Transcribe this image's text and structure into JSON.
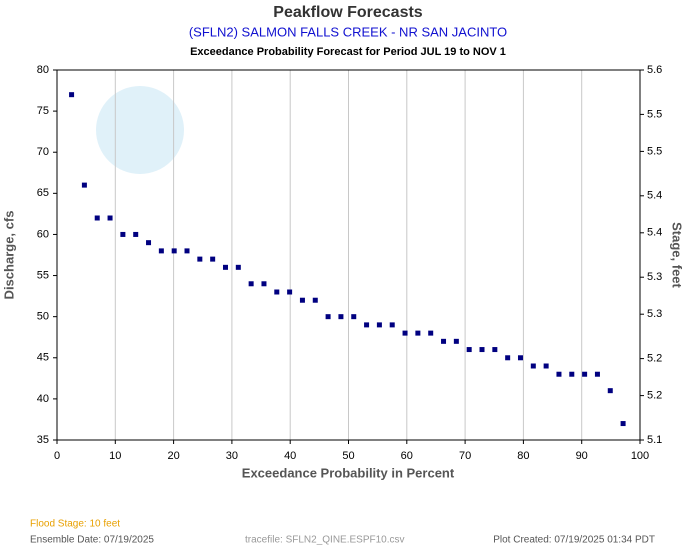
{
  "chart_data": {
    "type": "scatter",
    "title": "Peakflow Forecasts",
    "subtitle": "(SFLN2) SALMON FALLS CREEK - NR SAN JACINTO",
    "period": "Exceedance Probability Forecast for Period JUL 19 to NOV 1",
    "x_label": "Exceedance Probability in Percent",
    "y_label": "Discharge, cfs",
    "y2_label": "Stage, feet",
    "xlim": [
      0,
      100
    ],
    "xticks": [
      0,
      10,
      20,
      30,
      40,
      50,
      60,
      70,
      80,
      90,
      100
    ],
    "ylim": [
      35,
      80
    ],
    "yticks": [
      35,
      40,
      45,
      50,
      55,
      60,
      65,
      70,
      75,
      80
    ],
    "y2lim": [
      5.1,
      5.6
    ],
    "y2ticks": [
      5.1,
      {
        "value": 5.16,
        "label": "5.2"
      },
      {
        "value": 5.21,
        "label": "5.2"
      },
      {
        "value": 5.27,
        "label": "5.3"
      },
      {
        "value": 5.32,
        "label": "5.3"
      },
      {
        "value": 5.38,
        "label": "5.4"
      },
      {
        "value": 5.43,
        "label": "5.4"
      },
      {
        "value": 5.49,
        "label": "5.5"
      },
      {
        "value": 5.54,
        "label": "5.5"
      },
      5.6
    ],
    "grid": "x",
    "series": [
      {
        "color": "#000080",
        "x": [
          2.5,
          4.7,
          6.9,
          9.1,
          11.3,
          13.5,
          15.7,
          17.9,
          20.1,
          22.3,
          24.5,
          26.7,
          28.9,
          31.1,
          33.3,
          35.5,
          37.7,
          39.9,
          42.1,
          44.3,
          46.5,
          48.7,
          50.9,
          53.1,
          55.3,
          57.5,
          59.7,
          61.9,
          64.1,
          66.3,
          68.5,
          70.7,
          72.9,
          75.1,
          77.3,
          79.5,
          81.7,
          83.9,
          86.1,
          88.3,
          90.5,
          92.7,
          94.9,
          97.1
        ],
        "values": [
          77,
          66,
          62,
          62,
          60,
          60,
          59,
          58,
          58,
          58,
          57,
          57,
          56,
          56,
          54,
          54,
          53,
          53,
          52,
          52,
          50,
          50,
          50,
          49,
          49,
          49,
          48,
          48,
          48,
          47,
          47,
          46,
          46,
          46,
          45,
          45,
          44,
          44,
          43,
          43,
          43,
          43,
          41,
          37
        ]
      }
    ],
    "footer": {
      "flood_stage": "Flood Stage: 10 feet",
      "ensemble_date": "Ensemble Date: 07/19/2025",
      "tracefile": "tracefile: SFLN2_QINE.ESPF10.csv",
      "plot_created": "Plot Created: 07/19/2025 01:34 PDT"
    }
  }
}
